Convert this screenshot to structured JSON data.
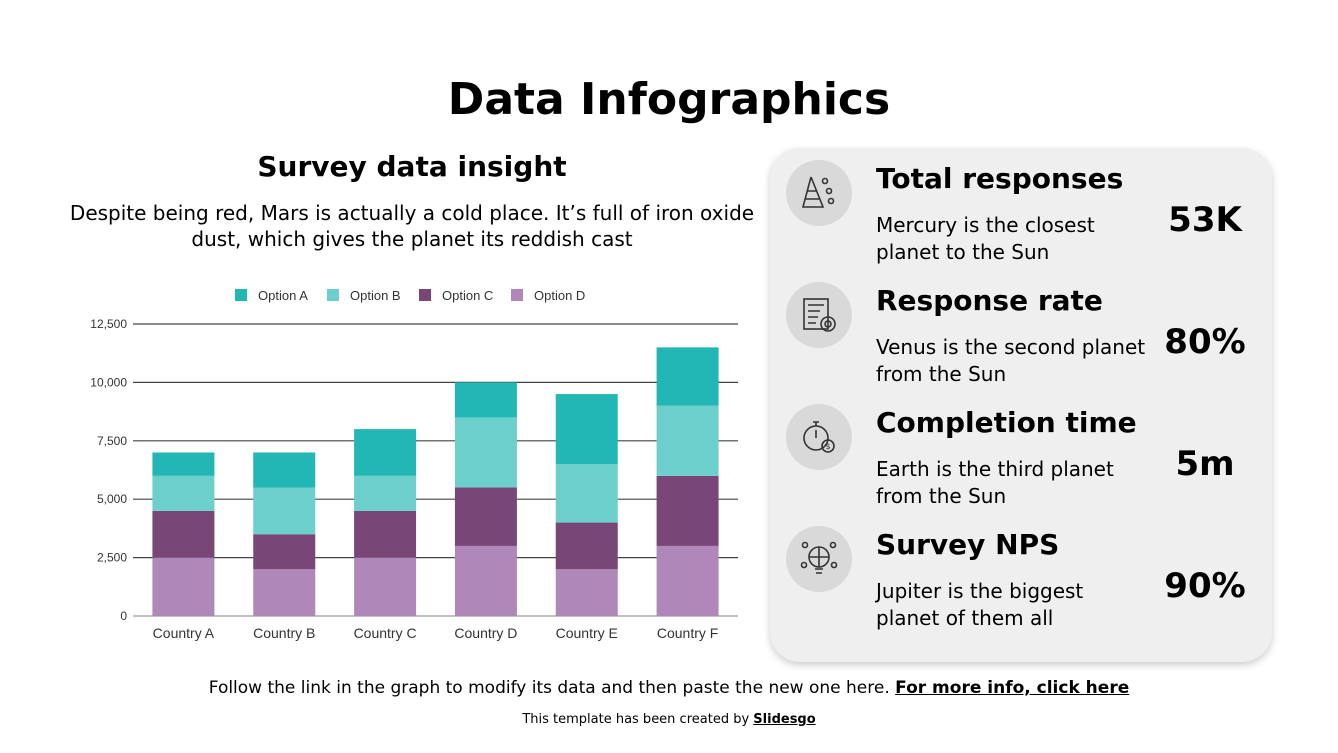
{
  "title": "Data Infographics",
  "subtitle": "Survey data insight",
  "description": "Despite being red, Mars is actually a cold place. It’s full of iron oxide dust, which gives the planet its reddish cast",
  "chart_data": {
    "type": "bar",
    "stacked": true,
    "categories": [
      "Country A",
      "Country B",
      "Country C",
      "Country D",
      "Country E",
      "Country F"
    ],
    "series": [
      {
        "name": "Option D",
        "color": "#b087b9",
        "values": [
          2500,
          2000,
          2500,
          3000,
          2000,
          3000
        ]
      },
      {
        "name": "Option C",
        "color": "#784677",
        "values": [
          2000,
          1500,
          2000,
          2500,
          2000,
          3000
        ]
      },
      {
        "name": "Option B",
        "color": "#6ccfcb",
        "values": [
          1500,
          2000,
          1500,
          3000,
          2500,
          3000
        ]
      },
      {
        "name": "Option A",
        "color": "#22b7b4",
        "values": [
          1000,
          1500,
          2000,
          1500,
          3000,
          2500
        ]
      }
    ],
    "legend_order": [
      "Option A",
      "Option B",
      "Option C",
      "Option D"
    ],
    "yticks": [
      "0",
      "2,500",
      "5,000",
      "7,500",
      "10,000",
      "12,500"
    ],
    "ylim": [
      0,
      12500
    ],
    "grid": true,
    "legend": "top"
  },
  "stats": [
    {
      "icon": "pyramid-users-icon",
      "heading": "Total responses",
      "desc": "Mercury is the closest planet to the Sun",
      "value": "53K"
    },
    {
      "icon": "survey-target-icon",
      "heading": "Response rate",
      "desc": "Venus is the second planet from the Sun",
      "value": "80%"
    },
    {
      "icon": "stopwatch-gear-icon",
      "heading": "Completion time",
      "desc": "Earth is the third planet from the Sun",
      "value": "5m"
    },
    {
      "icon": "lightbulb-network-icon",
      "heading": "Survey NPS",
      "desc": "Jupiter is the biggest planet of them all",
      "value": "90%"
    }
  ],
  "footer": {
    "text": "Follow the link in the graph to modify its data and then paste the new one here. ",
    "link": "For more info, click here"
  },
  "credit": {
    "text": "This template has been created by ",
    "brand": "Slidesgo"
  }
}
